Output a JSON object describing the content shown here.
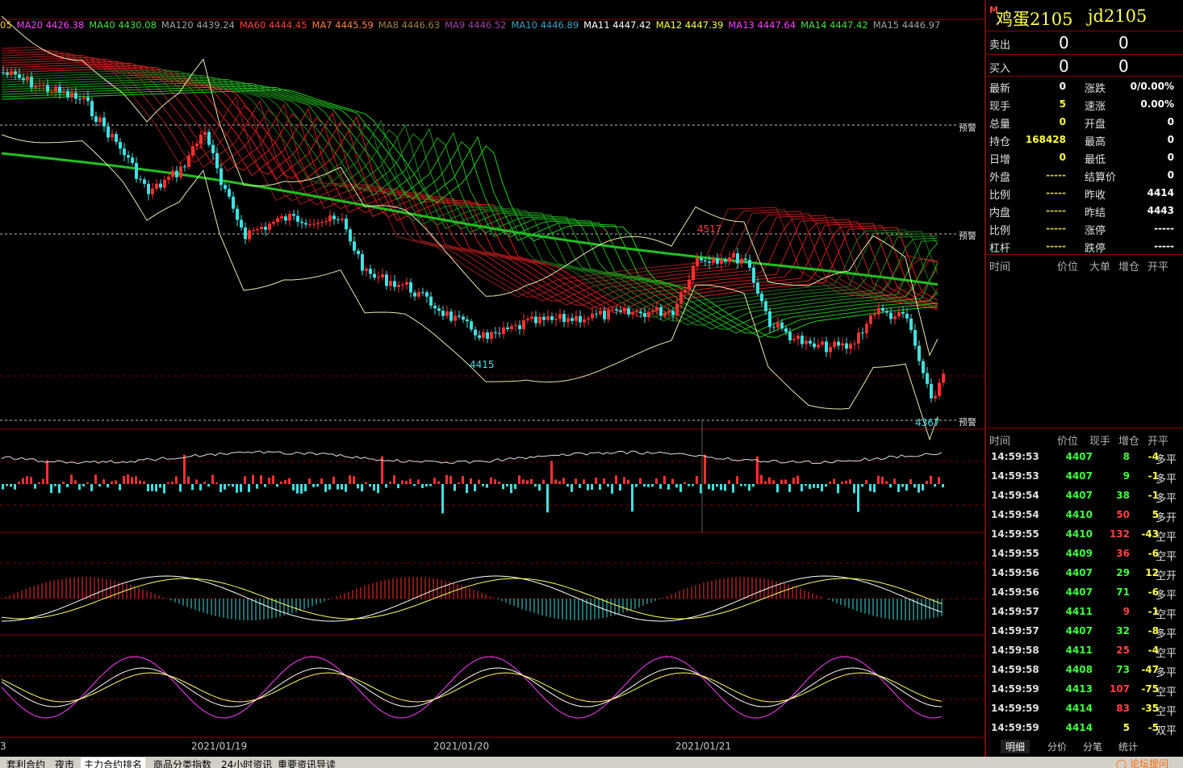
{
  "ma_legend": [
    {
      "label": "05",
      "color": "#ffd000"
    },
    {
      "label": "MA20 4426.38",
      "color": "#ff40ff"
    },
    {
      "label": "MA40 4430.08",
      "color": "#40e040"
    },
    {
      "label": "MA120 4439.24",
      "color": "#a0a0a0"
    },
    {
      "label": "MA60 4444.45",
      "color": "#ff4040"
    },
    {
      "label": "MA7 4445.59",
      "color": "#ff8040"
    },
    {
      "label": "MA8 4446.63",
      "color": "#a08040"
    },
    {
      "label": "MA9 4446.52",
      "color": "#a040a0"
    },
    {
      "label": "MA10 4446.89",
      "color": "#40a0c0"
    },
    {
      "label": "MA11 4447.42",
      "color": "#ffffff"
    },
    {
      "label": "MA12 4447.39",
      "color": "#ffff40"
    },
    {
      "label": "MA13 4447.64",
      "color": "#ff40ff"
    },
    {
      "label": "MA14 4447.42",
      "color": "#40e040"
    },
    {
      "label": "MA15 4446.97",
      "color": "#a0a0a0"
    }
  ],
  "chart_annotations": {
    "high_label": "4517",
    "low1_label": "4415",
    "low2_label": "4367",
    "warn_label": "预警"
  },
  "dates": [
    "2021/01/19",
    "2021/01/20",
    "2021/01/21"
  ],
  "left_edge_label": "3",
  "quote": {
    "name": "鸡蛋2105",
    "code": "jd2105",
    "m_badge": "M",
    "sell": {
      "label": "卖出",
      "price": "0",
      "vol": "0"
    },
    "buy": {
      "label": "买入",
      "price": "0",
      "vol": "0"
    },
    "stats": [
      {
        "l1": "最新",
        "v1": "0",
        "c1": "#ffffff",
        "l2": "涨跌",
        "v2": "0/0.00%"
      },
      {
        "l1": "现手",
        "v1": "5",
        "c1": "#ffff40",
        "l2": "速涨",
        "v2": "0.00%"
      },
      {
        "l1": "总量",
        "v1": "0",
        "c1": "#ffff40",
        "l2": "开盘",
        "v2": "0"
      },
      {
        "l1": "持仓",
        "v1": "168428",
        "c1": "#ffff40",
        "l2": "最高",
        "v2": "0"
      },
      {
        "l1": "日增",
        "v1": "0",
        "c1": "#ffff40",
        "l2": "最低",
        "v2": "0"
      },
      {
        "l1": "外盘",
        "v1": "-----",
        "c1": "#d0d040",
        "l2": "结算价",
        "v2": "0"
      },
      {
        "l1": "比例",
        "v1": "-----",
        "c1": "#d0d040",
        "l2": "昨收",
        "v2": "4414"
      },
      {
        "l1": "内盘",
        "v1": "-----",
        "c1": "#d0d040",
        "l2": "昨结",
        "v2": "4443"
      },
      {
        "l1": "比例",
        "v1": "-----",
        "c1": "#d0d040",
        "l2": "涨停",
        "v2": "-----"
      },
      {
        "l1": "杠杆",
        "v1": "-----",
        "c1": "#d0d040",
        "l2": "跌停",
        "v2": "-----"
      }
    ],
    "big_order_header": {
      "time": "时间",
      "price": "价位",
      "big": "大单",
      "oi": "增仓",
      "oc": "开平"
    },
    "tick_header": {
      "time": "时间",
      "price": "价位",
      "vol": "现手",
      "oi": "增仓",
      "oc": "开平"
    },
    "ticks": [
      {
        "time": "14:59:53",
        "price": "4407",
        "vol": "8",
        "oi": "-4",
        "oc": "多平",
        "vc": "#40ff40",
        "occ": "#e0e0e0"
      },
      {
        "time": "14:59:53",
        "price": "4407",
        "vol": "9",
        "oi": "-1",
        "oc": "多平",
        "vc": "#40ff40",
        "occ": "#e0e0e0"
      },
      {
        "time": "14:59:54",
        "price": "4407",
        "vol": "38",
        "oi": "-1",
        "oc": "多平",
        "vc": "#40ff40",
        "occ": "#e0e0e0"
      },
      {
        "time": "14:59:54",
        "price": "4410",
        "vol": "50",
        "oi": "5",
        "oc": "多开",
        "vc": "#ff4040",
        "occ": "#e0e0e0"
      },
      {
        "time": "14:59:55",
        "price": "4410",
        "vol": "132",
        "oi": "-43",
        "oc": "空平",
        "vc": "#ff4040",
        "occ": "#e0e0e0"
      },
      {
        "time": "14:59:55",
        "price": "4409",
        "vol": "36",
        "oi": "-6",
        "oc": "空平",
        "vc": "#ff4040",
        "occ": "#e0e0e0"
      },
      {
        "time": "14:59:56",
        "price": "4407",
        "vol": "29",
        "oi": "12",
        "oc": "空开",
        "vc": "#40ff40",
        "occ": "#e0e0e0"
      },
      {
        "time": "14:59:56",
        "price": "4407",
        "vol": "71",
        "oi": "-6",
        "oc": "多平",
        "vc": "#40ff40",
        "occ": "#e0e0e0"
      },
      {
        "time": "14:59:57",
        "price": "4411",
        "vol": "9",
        "oi": "-1",
        "oc": "空平",
        "vc": "#ff4040",
        "occ": "#e0e0e0"
      },
      {
        "time": "14:59:57",
        "price": "4407",
        "vol": "32",
        "oi": "-8",
        "oc": "多平",
        "vc": "#40ff40",
        "occ": "#e0e0e0"
      },
      {
        "time": "14:59:58",
        "price": "4411",
        "vol": "25",
        "oi": "-4",
        "oc": "空平",
        "vc": "#ff4040",
        "occ": "#e0e0e0"
      },
      {
        "time": "14:59:58",
        "price": "4408",
        "vol": "73",
        "oi": "-47",
        "oc": "多平",
        "vc": "#40ff40",
        "occ": "#e0e0e0"
      },
      {
        "time": "14:59:59",
        "price": "4413",
        "vol": "107",
        "oi": "-75",
        "oc": "空平",
        "vc": "#ff4040",
        "occ": "#e0e0e0"
      },
      {
        "time": "14:59:59",
        "price": "4414",
        "vol": "83",
        "oi": "-35",
        "oc": "空平",
        "vc": "#ff4040",
        "occ": "#e0e0e0"
      },
      {
        "time": "14:59:59",
        "price": "4414",
        "vol": "5",
        "oi": "-5",
        "oc": "双平",
        "vc": "#ffff40",
        "occ": "#e0e0e0"
      }
    ],
    "tabs": [
      "明细",
      "分价",
      "分笔",
      "统计"
    ]
  },
  "bottom_tabs": [
    "套利合约",
    "夜市",
    "主力合约排名",
    "商品分类指数",
    "24小时资讯",
    "重要资讯导读"
  ],
  "bottom_active": "主力合约排名",
  "forum": "论坛提问"
}
